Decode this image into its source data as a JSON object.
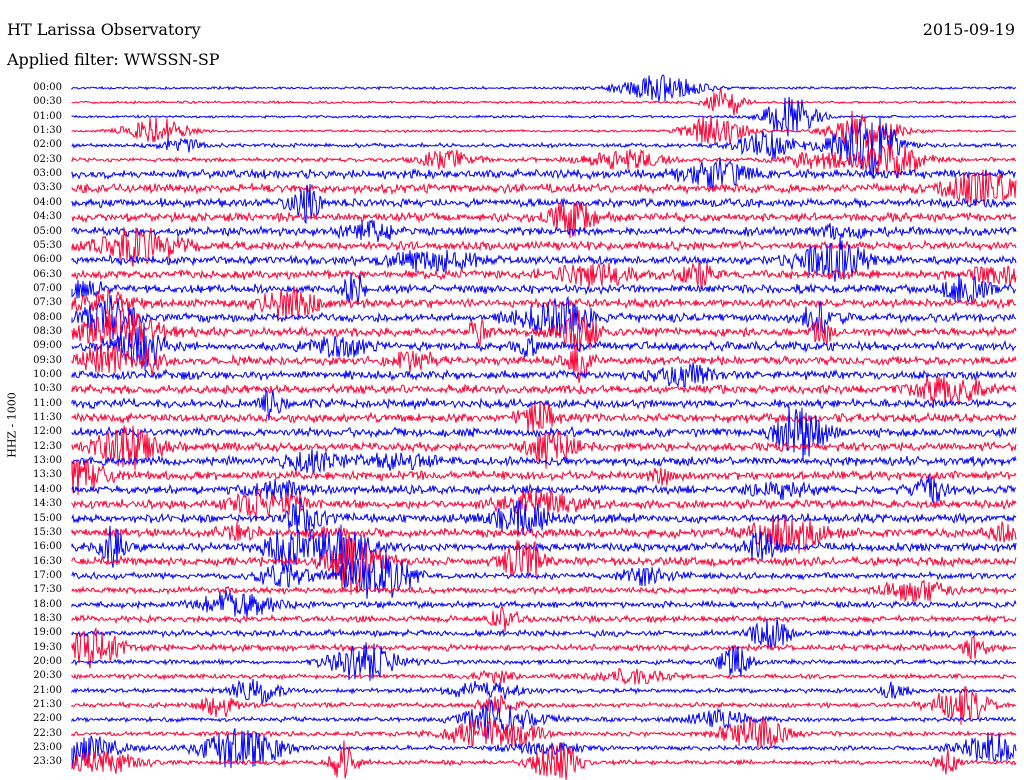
{
  "header": {
    "station": "HT Larissa Observatory",
    "date": "2015-09-19",
    "filter": "Applied filter: WWSSN-SP"
  },
  "channel": "HHZ - 1000",
  "colors": {
    "trace_a": "#0000ff",
    "trace_b": "#ff0033",
    "background": "#ffffff",
    "text": "#000000"
  },
  "rows": [
    "00:00",
    "00:30",
    "01:00",
    "01:30",
    "02:00",
    "02:30",
    "03:00",
    "03:30",
    "04:00",
    "04:30",
    "05:00",
    "05:30",
    "06:00",
    "06:30",
    "07:00",
    "07:30",
    "08:00",
    "08:30",
    "09:00",
    "09:30",
    "10:00",
    "10:30",
    "11:00",
    "11:30",
    "12:00",
    "12:30",
    "13:00",
    "13:30",
    "14:00",
    "14:30",
    "15:00",
    "15:30",
    "16:00",
    "16:30",
    "17:00",
    "17:30",
    "18:00",
    "18:30",
    "19:00",
    "19:30",
    "20:00",
    "20:30",
    "21:00",
    "21:30",
    "22:00",
    "22:30",
    "23:00",
    "23:30"
  ]
}
